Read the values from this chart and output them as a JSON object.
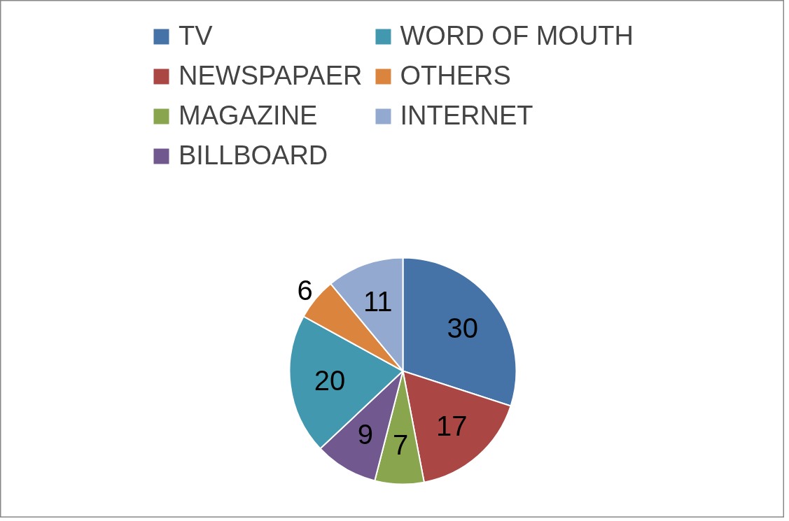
{
  "chart_data": {
    "type": "pie",
    "categories": [
      "TV",
      "NEWSPAPAER",
      "MAGAZINE",
      "BILLBOARD",
      "WORD OF MOUTH",
      "OTHERS",
      "INTERNET"
    ],
    "values": [
      30,
      17,
      7,
      9,
      20,
      6,
      11
    ],
    "colors": [
      "#4572a7",
      "#aa4643",
      "#89a54e",
      "#71588f",
      "#4198af",
      "#db843d",
      "#93a9cf"
    ],
    "data_labels": true,
    "legend": "top"
  }
}
